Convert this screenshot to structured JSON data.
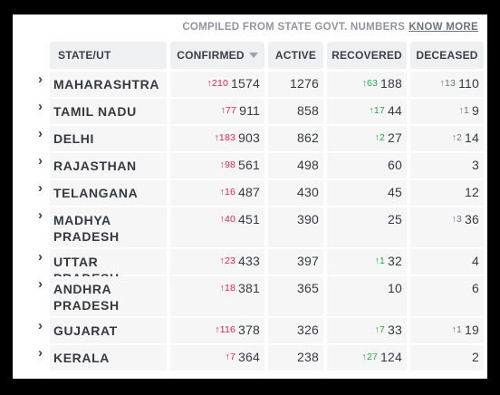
{
  "header_note": {
    "text": "COMPILED FROM STATE GOVT. NUMBERS",
    "link": "KNOW MORE"
  },
  "columns": {
    "state": "STATE/UT",
    "confirmed": "CONFIRMED",
    "active": "ACTIVE",
    "recovered": "RECOVERED",
    "deceased": "DECEASED"
  },
  "sort_indicator_icon": "caret-down-icon",
  "expand_icon": "chevron-right-icon",
  "delta_arrow": "↑",
  "colors": {
    "confirmed_delta": "#e0234a",
    "recovered_delta": "#28a745",
    "deceased_delta": "#6c757d"
  },
  "rows": [
    {
      "state": "MAHARASHTRA",
      "confirmed_delta": "210",
      "confirmed": "1574",
      "active": "1276",
      "recovered_delta": "63",
      "recovered": "188",
      "deceased_delta": "13",
      "deceased": "110"
    },
    {
      "state": "TAMIL NADU",
      "confirmed_delta": "77",
      "confirmed": "911",
      "active": "858",
      "recovered_delta": "17",
      "recovered": "44",
      "deceased_delta": "1",
      "deceased": "9"
    },
    {
      "state": "DELHI",
      "confirmed_delta": "183",
      "confirmed": "903",
      "active": "862",
      "recovered_delta": "2",
      "recovered": "27",
      "deceased_delta": "2",
      "deceased": "14"
    },
    {
      "state": "RAJASTHAN",
      "confirmed_delta": "98",
      "confirmed": "561",
      "active": "498",
      "recovered_delta": "",
      "recovered": "60",
      "deceased_delta": "",
      "deceased": "3"
    },
    {
      "state": "TELANGANA",
      "confirmed_delta": "16",
      "confirmed": "487",
      "active": "430",
      "recovered_delta": "",
      "recovered": "45",
      "deceased_delta": "",
      "deceased": "12"
    },
    {
      "state": "MADHYA PRADESH",
      "confirmed_delta": "40",
      "confirmed": "451",
      "active": "390",
      "recovered_delta": "",
      "recovered": "25",
      "deceased_delta": "3",
      "deceased": "36"
    },
    {
      "state": "UTTAR PRADESH",
      "confirmed_delta": "23",
      "confirmed": "433",
      "active": "397",
      "recovered_delta": "1",
      "recovered": "32",
      "deceased_delta": "",
      "deceased": "4"
    },
    {
      "state": "ANDHRA PRADESH",
      "confirmed_delta": "18",
      "confirmed": "381",
      "active": "365",
      "recovered_delta": "",
      "recovered": "10",
      "deceased_delta": "",
      "deceased": "6"
    },
    {
      "state": "GUJARAT",
      "confirmed_delta": "116",
      "confirmed": "378",
      "active": "326",
      "recovered_delta": "7",
      "recovered": "33",
      "deceased_delta": "1",
      "deceased": "19"
    },
    {
      "state": "KERALA",
      "confirmed_delta": "7",
      "confirmed": "364",
      "active": "238",
      "recovered_delta": "27",
      "recovered": "124",
      "deceased_delta": "",
      "deceased": "2"
    }
  ]
}
